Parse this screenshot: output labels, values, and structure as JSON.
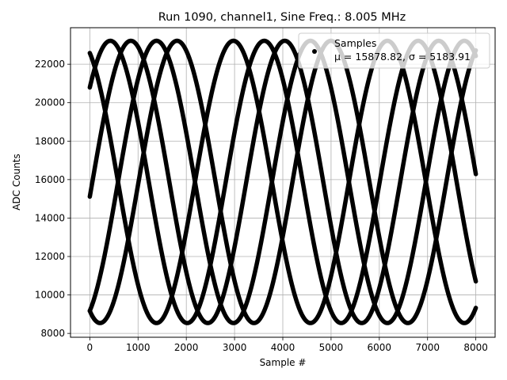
{
  "chart_data": {
    "type": "scatter",
    "title": "Run 1090, channel1, Sine Freq.: 8.005 MHz",
    "xlabel": "Sample #",
    "ylabel": "ADC Counts",
    "xlim": [
      -400,
      8400
    ],
    "ylim": [
      7800,
      23900
    ],
    "xticks": [
      0,
      1000,
      2000,
      3000,
      4000,
      5000,
      6000,
      7000,
      8000
    ],
    "yticks": [
      8000,
      10000,
      12000,
      14000,
      16000,
      18000,
      20000,
      22000
    ],
    "grid": true,
    "legend": {
      "placement": "top-right",
      "entries": [
        {
          "line1": "Samples",
          "line2": "μ = 15878.82, σ = 5183.91"
        }
      ]
    },
    "series": [
      {
        "color": "#000000",
        "marker": "dot",
        "sine_model": {
          "mean": 15878.82,
          "amplitude": 7340,
          "period_samples": 3190,
          "phase_at_0_deg": 114
        }
      },
      {
        "color": "#000000",
        "marker": "dot",
        "sine_model": {
          "mean": 15878.82,
          "amplitude": 7340,
          "period_samples": 3190,
          "phase_at_0_deg": 42
        }
      },
      {
        "color": "#000000",
        "marker": "dot",
        "sine_model": {
          "mean": 15878.82,
          "amplitude": 7340,
          "period_samples": 3190,
          "phase_at_0_deg": -6
        }
      },
      {
        "color": "#000000",
        "marker": "dot",
        "sine_model": {
          "mean": 15878.82,
          "amplitude": 7340,
          "period_samples": 3190,
          "phase_at_0_deg": -114
        }
      },
      {
        "color": "#000000",
        "marker": "dot",
        "sine_model": {
          "mean": 15878.82,
          "amplitude": 7340,
          "period_samples": 3190,
          "phase_at_0_deg": -66
        }
      }
    ]
  }
}
